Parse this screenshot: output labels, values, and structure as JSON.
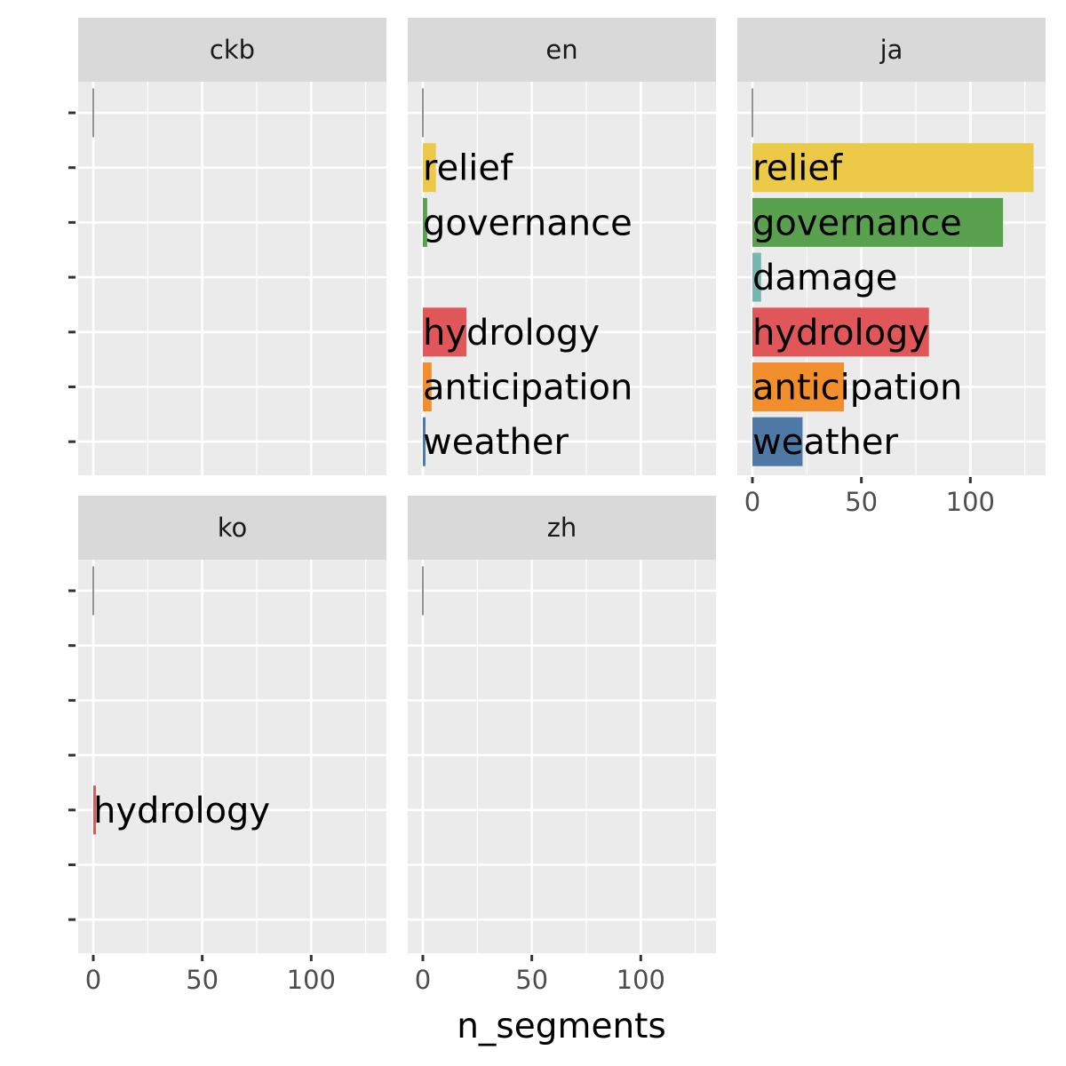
{
  "chart_data": {
    "type": "bar",
    "orientation": "horizontal",
    "facet_layout": "wrap, 3 columns, shared scales",
    "xlabel": "n_segments",
    "ylabel": "",
    "xlim": [
      0,
      135
    ],
    "x_ticks": [
      0,
      50,
      100
    ],
    "grid": true,
    "legend": "none",
    "categories": [
      "",
      "relief",
      "governance",
      "damage",
      "hydrology",
      "anticipation",
      "weather"
    ],
    "category_colors": {
      "": "#6e6e6e",
      "relief": "#edc948",
      "governance": "#59a14f",
      "damage": "#76b7b2",
      "hydrology": "#e15759",
      "anticipation": "#f28e2b",
      "weather": "#4e79a7"
    },
    "panels": [
      {
        "facet": "ckb",
        "bars": [
          {
            "category": "",
            "label": "",
            "value": 0
          }
        ]
      },
      {
        "facet": "en",
        "bars": [
          {
            "category": "",
            "label": "",
            "value": 0
          },
          {
            "category": "relief",
            "label": "relief",
            "value": 6
          },
          {
            "category": "governance",
            "label": "governance",
            "value": 2
          },
          {
            "category": "hydrology",
            "label": "hydrology",
            "value": 20
          },
          {
            "category": "anticipation",
            "label": "anticipation",
            "value": 4
          },
          {
            "category": "weather",
            "label": "weather",
            "value": 1
          }
        ]
      },
      {
        "facet": "ja",
        "bars": [
          {
            "category": "",
            "label": "",
            "value": 0
          },
          {
            "category": "relief",
            "label": "relief",
            "value": 129
          },
          {
            "category": "governance",
            "label": "governance",
            "value": 115
          },
          {
            "category": "damage",
            "label": "damage",
            "value": 4
          },
          {
            "category": "hydrology",
            "label": "hydrology",
            "value": 81
          },
          {
            "category": "anticipation",
            "label": "anticipation",
            "value": 42
          },
          {
            "category": "weather",
            "label": "weather",
            "value": 23
          }
        ]
      },
      {
        "facet": "ko",
        "bars": [
          {
            "category": "",
            "label": "",
            "value": 0
          },
          {
            "category": "hydrology",
            "label": "hydrology",
            "value": 1
          }
        ]
      },
      {
        "facet": "zh",
        "bars": [
          {
            "category": "",
            "label": "",
            "value": 0
          }
        ]
      }
    ]
  }
}
